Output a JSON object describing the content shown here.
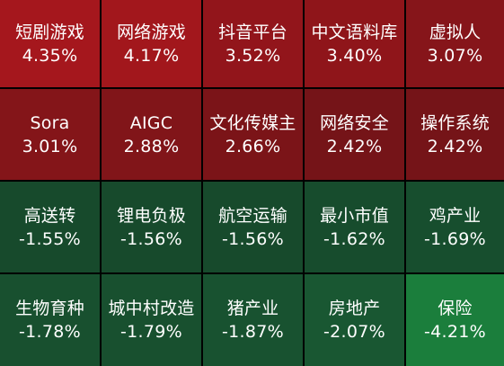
{
  "heatmap": {
    "tiles": [
      {
        "name": "短剧游戏",
        "change": "4.35%",
        "value": 4.35,
        "color": "#a5171d"
      },
      {
        "name": "网络游戏",
        "change": "4.17%",
        "value": 4.17,
        "color": "#a2171c"
      },
      {
        "name": "抖音平台",
        "change": "3.52%",
        "value": 3.52,
        "color": "#92151b"
      },
      {
        "name": "中文语料库",
        "change": "3.40%",
        "value": 3.4,
        "color": "#8f151a"
      },
      {
        "name": "虚拟人",
        "change": "3.07%",
        "value": 3.07,
        "color": "#86151a"
      },
      {
        "name": "Sora",
        "change": "3.01%",
        "value": 3.01,
        "color": "#841519"
      },
      {
        "name": "AIGC",
        "change": "2.88%",
        "value": 2.88,
        "color": "#811519"
      },
      {
        "name": "文化传媒主",
        "change": "2.66%",
        "value": 2.66,
        "color": "#7b1418"
      },
      {
        "name": "网络安全",
        "change": "2.42%",
        "value": 2.42,
        "color": "#751418"
      },
      {
        "name": "操作系统",
        "change": "2.42%",
        "value": 2.42,
        "color": "#751418"
      },
      {
        "name": "高送转",
        "change": "-1.55%",
        "value": -1.55,
        "color": "#174a2c"
      },
      {
        "name": "锂电负极",
        "change": "-1.56%",
        "value": -1.56,
        "color": "#174a2c"
      },
      {
        "name": "航空运输",
        "change": "-1.56%",
        "value": -1.56,
        "color": "#174a2c"
      },
      {
        "name": "最小市值",
        "change": "-1.62%",
        "value": -1.62,
        "color": "#174c2d"
      },
      {
        "name": "鸡产业",
        "change": "-1.69%",
        "value": -1.69,
        "color": "#174e2e"
      },
      {
        "name": "生物育种",
        "change": "-1.78%",
        "value": -1.78,
        "color": "#18502f"
      },
      {
        "name": "城中村改造",
        "change": "-1.79%",
        "value": -1.79,
        "color": "#18502f"
      },
      {
        "name": "猪产业",
        "change": "-1.87%",
        "value": -1.87,
        "color": "#185230"
      },
      {
        "name": "房地产",
        "change": "-2.07%",
        "value": -2.07,
        "color": "#195732"
      },
      {
        "name": "保险",
        "change": "-4.21%",
        "value": -4.21,
        "color": "#1b7e3c"
      }
    ]
  }
}
